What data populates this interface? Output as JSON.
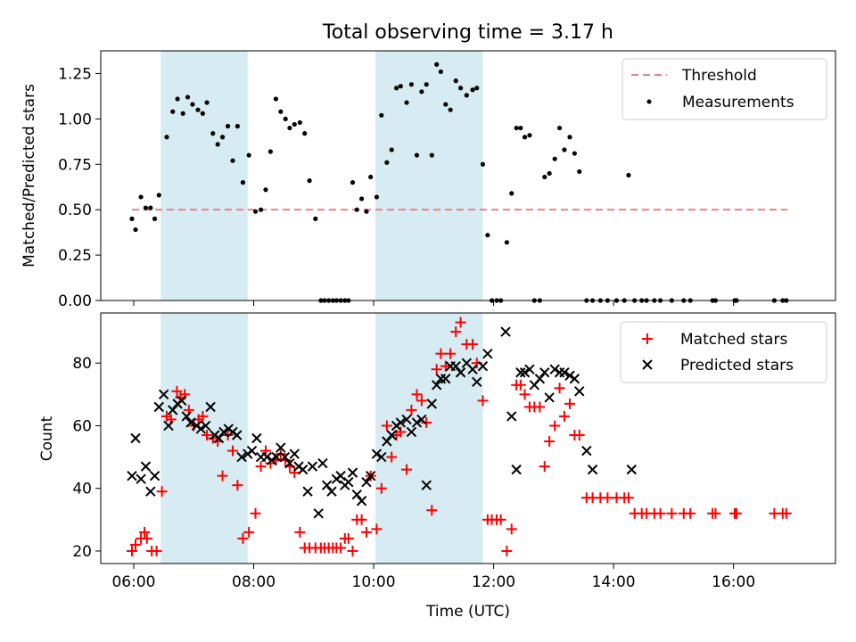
{
  "chart_data": [
    {
      "type": "scatter",
      "title": "Total observing time = 3.17 h",
      "ylabel": "Matched/Predicted stars",
      "xlabel": "",
      "xlim": [
        5.45,
        17.7
      ],
      "ylim": [
        0.0,
        1.375
      ],
      "yticks": [
        0.0,
        0.25,
        0.5,
        0.75,
        1.0,
        1.25
      ],
      "ytick_labels": [
        "0.00",
        "0.25",
        "0.50",
        "0.75",
        "1.00",
        "1.25"
      ],
      "xticks": [
        6,
        8,
        10,
        12,
        14,
        16
      ],
      "shaded_intervals": [
        [
          6.45,
          7.9
        ],
        [
          10.03,
          11.82
        ]
      ],
      "shade_color": "#add8e6",
      "legend_position": "top-right",
      "threshold": {
        "name": "Threshold",
        "y": 0.5,
        "x_range": [
          5.97,
          16.9
        ],
        "color": "#f08080"
      },
      "series": [
        {
          "name": "Measurements",
          "color": "#000000",
          "x": [
            5.97,
            6.03,
            6.12,
            6.2,
            6.28,
            6.35,
            6.42,
            6.55,
            6.65,
            6.73,
            6.82,
            6.9,
            6.98,
            7.07,
            7.15,
            7.22,
            7.32,
            7.4,
            7.48,
            7.57,
            7.65,
            7.73,
            7.82,
            7.92,
            8.03,
            8.12,
            8.2,
            8.28,
            8.37,
            8.45,
            8.53,
            8.6,
            8.68,
            8.77,
            8.85,
            8.93,
            9.03,
            9.12,
            9.18,
            9.25,
            9.32,
            9.38,
            9.45,
            9.52,
            9.58,
            9.65,
            9.72,
            9.8,
            9.88,
            9.95,
            10.05,
            10.13,
            10.22,
            10.3,
            10.38,
            10.45,
            10.55,
            10.63,
            10.72,
            10.8,
            10.88,
            10.97,
            11.05,
            11.12,
            11.2,
            11.28,
            11.37,
            11.45,
            11.55,
            11.65,
            11.72,
            11.82,
            11.9,
            11.97,
            12.05,
            12.12,
            12.22,
            12.3,
            12.38,
            12.45,
            12.52,
            12.6,
            12.68,
            12.77,
            12.85,
            12.93,
            13.02,
            13.1,
            13.18,
            13.27,
            13.35,
            13.43,
            13.55,
            13.65,
            13.78,
            13.9,
            14.05,
            14.18,
            14.25,
            14.35,
            14.47,
            14.55,
            14.68,
            14.78,
            14.97,
            15.17,
            15.28,
            15.65,
            15.7,
            16.02,
            16.05,
            16.68,
            16.82,
            16.88
          ],
          "y": [
            0.45,
            0.39,
            0.57,
            0.51,
            0.51,
            0.45,
            0.58,
            0.9,
            1.04,
            1.11,
            1.03,
            1.12,
            1.08,
            1.05,
            1.03,
            1.09,
            0.92,
            0.86,
            0.9,
            0.96,
            0.77,
            0.96,
            0.65,
            0.8,
            0.49,
            0.5,
            0.61,
            0.82,
            1.11,
            1.04,
            1.0,
            0.95,
            0.97,
            0.98,
            0.92,
            0.66,
            0.45,
            0.0,
            0.0,
            0.0,
            0.0,
            0.0,
            0.0,
            0.0,
            0.0,
            0.65,
            0.5,
            0.56,
            0.49,
            0.68,
            0.57,
            1.02,
            0.76,
            0.83,
            1.17,
            1.18,
            1.09,
            1.19,
            0.8,
            1.15,
            1.19,
            0.8,
            1.3,
            1.26,
            1.08,
            1.05,
            1.21,
            1.17,
            1.13,
            1.16,
            1.17,
            0.75,
            0.36,
            0.0,
            0.0,
            0.0,
            0.32,
            0.59,
            0.95,
            0.95,
            0.9,
            0.91,
            0.0,
            0.0,
            0.68,
            0.7,
            0.78,
            0.95,
            0.83,
            0.9,
            0.81,
            0.71,
            0.0,
            0.0,
            0.0,
            0.0,
            0.0,
            0.0,
            0.69,
            0.0,
            0.0,
            0.0,
            0.0,
            0.0,
            0.0,
            0.0,
            0.0,
            0.0,
            0.0,
            0.0,
            0.0,
            0.0,
            0.0,
            0.0
          ]
        }
      ]
    },
    {
      "type": "scatter",
      "title": "",
      "xlabel": "Time (UTC)",
      "ylabel": "Count",
      "xlim": [
        5.45,
        17.7
      ],
      "ylim": [
        16,
        96
      ],
      "yticks": [
        20,
        40,
        60,
        80
      ],
      "ytick_labels": [
        "20",
        "40",
        "60",
        "80"
      ],
      "xticks": [
        6,
        8,
        10,
        12,
        14,
        16
      ],
      "xtick_labels": [
        "06:00",
        "08:00",
        "10:00",
        "12:00",
        "14:00",
        "16:00"
      ],
      "shaded_intervals": [
        [
          6.45,
          7.9
        ],
        [
          10.03,
          11.82
        ]
      ],
      "shade_color": "#add8e6",
      "legend_position": "top-right",
      "series": [
        {
          "name": "Matched stars",
          "marker": "plus",
          "color": "#ff0000",
          "x": [
            5.97,
            6.03,
            6.12,
            6.18,
            6.22,
            6.3,
            6.38,
            6.47,
            6.55,
            6.62,
            6.72,
            6.78,
            6.85,
            6.92,
            7.0,
            7.08,
            7.15,
            7.22,
            7.32,
            7.4,
            7.48,
            7.57,
            7.65,
            7.73,
            7.82,
            7.92,
            8.03,
            8.12,
            8.2,
            8.28,
            8.37,
            8.45,
            8.53,
            8.6,
            8.68,
            8.77,
            8.85,
            8.93,
            9.03,
            9.12,
            9.18,
            9.25,
            9.32,
            9.38,
            9.45,
            9.52,
            9.58,
            9.65,
            9.72,
            9.8,
            9.88,
            9.95,
            10.05,
            10.13,
            10.22,
            10.3,
            10.38,
            10.45,
            10.55,
            10.63,
            10.72,
            10.8,
            10.88,
            10.97,
            11.05,
            11.12,
            11.2,
            11.28,
            11.37,
            11.45,
            11.55,
            11.65,
            11.72,
            11.82,
            11.9,
            11.97,
            12.05,
            12.12,
            12.22,
            12.3,
            12.38,
            12.45,
            12.52,
            12.6,
            12.68,
            12.77,
            12.85,
            12.93,
            13.02,
            13.1,
            13.18,
            13.27,
            13.35,
            13.43,
            13.55,
            13.65,
            13.78,
            13.9,
            14.05,
            14.18,
            14.25,
            14.35,
            14.47,
            14.55,
            14.68,
            14.78,
            14.97,
            15.17,
            15.28,
            15.65,
            15.7,
            16.02,
            16.05,
            16.68,
            16.82,
            16.88
          ],
          "y": [
            20,
            22,
            24,
            26,
            24,
            20,
            20,
            39,
            63,
            62,
            71,
            69,
            70,
            65,
            60,
            62,
            63,
            57,
            56,
            55,
            44,
            57,
            52,
            41,
            24,
            26,
            32,
            47,
            52,
            48,
            49,
            51,
            49,
            47,
            45,
            26,
            21,
            21,
            21,
            21,
            21,
            21,
            21,
            21,
            21,
            24,
            24,
            20,
            30,
            30,
            26,
            44,
            27,
            40,
            60,
            50,
            57,
            58,
            46,
            65,
            70,
            68,
            61,
            33,
            78,
            83,
            79,
            83,
            90,
            93,
            86,
            86,
            80,
            68,
            30,
            30,
            30,
            30,
            20,
            27,
            73,
            73,
            70,
            66,
            66,
            66,
            47,
            55,
            60,
            72,
            63,
            67,
            57,
            57,
            37,
            37,
            37,
            37,
            37,
            37,
            37,
            32,
            32,
            32,
            32,
            32,
            32,
            32,
            32,
            32,
            32,
            32,
            32,
            32,
            32,
            32
          ]
        },
        {
          "name": "Predicted stars",
          "marker": "x",
          "color": "#000000",
          "x": [
            5.97,
            6.03,
            6.12,
            6.2,
            6.28,
            6.35,
            6.42,
            6.5,
            6.58,
            6.65,
            6.73,
            6.8,
            6.88,
            6.95,
            7.05,
            7.12,
            7.2,
            7.28,
            7.35,
            7.42,
            7.5,
            7.58,
            7.65,
            7.72,
            7.8,
            7.9,
            7.97,
            8.05,
            8.12,
            8.22,
            8.3,
            8.38,
            8.45,
            8.52,
            8.6,
            8.68,
            8.75,
            8.82,
            8.9,
            8.98,
            9.08,
            9.15,
            9.22,
            9.3,
            9.38,
            9.45,
            9.52,
            9.58,
            9.65,
            9.72,
            9.8,
            9.88,
            9.95,
            10.05,
            10.13,
            10.22,
            10.3,
            10.38,
            10.45,
            10.55,
            10.63,
            10.72,
            10.8,
            10.88,
            10.97,
            11.05,
            11.12,
            11.2,
            11.28,
            11.37,
            11.45,
            11.55,
            11.65,
            11.72,
            11.82,
            11.9,
            12.2,
            12.3,
            12.38,
            12.45,
            12.52,
            12.6,
            12.68,
            12.77,
            12.85,
            12.93,
            13.02,
            13.1,
            13.18,
            13.27,
            13.35,
            13.43,
            13.55,
            13.65,
            14.3
          ],
          "y": [
            44,
            56,
            43,
            47,
            39,
            44,
            66,
            70,
            60,
            65,
            67,
            68,
            63,
            61,
            60,
            59,
            60,
            66,
            57,
            56,
            58,
            59,
            58,
            57,
            50,
            51,
            52,
            56,
            50,
            50,
            49,
            50,
            53,
            50,
            48,
            51,
            47,
            46,
            39,
            47,
            32,
            48,
            41,
            39,
            43,
            44,
            41,
            42,
            45,
            38,
            36,
            42,
            44,
            51,
            50,
            55,
            57,
            60,
            61,
            62,
            58,
            61,
            62,
            41,
            67,
            73,
            75,
            75,
            79,
            79,
            77,
            80,
            78,
            74,
            79,
            83,
            90,
            63,
            46,
            77,
            77,
            78,
            73,
            75,
            77,
            69,
            78,
            77,
            77,
            76,
            75,
            71,
            52,
            46,
            46
          ]
        }
      ]
    }
  ]
}
